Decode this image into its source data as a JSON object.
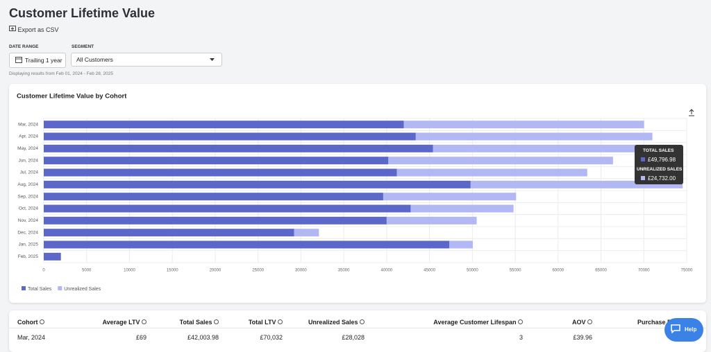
{
  "header": {
    "title": "Customer Lifetime Value",
    "export": "Export as CSV"
  },
  "filters": {
    "date_range_label": "DATE RANGE",
    "date_range_value": "Trailing 1 year",
    "segment_label": "SEGMENT",
    "segment_value": "All Customers",
    "note": "Displaying results from Feb 01, 2024 - Feb 28, 2025"
  },
  "chart_data": {
    "type": "hbar_stacked",
    "title": "Customer Lifetime Value by Cohort",
    "categories": [
      "Mar, 2024",
      "Apr, 2024",
      "May, 2024",
      "Jun, 2024",
      "Jul, 2024",
      "Aug, 2024",
      "Sep, 2024",
      "Oct, 2024",
      "Nov, 2024",
      "Dec, 2024",
      "Jan, 2025",
      "Feb, 2025"
    ],
    "series": [
      {
        "name": "Total Sales",
        "color": "#5c68c9",
        "values": [
          42003.98,
          43400,
          45400,
          40200,
          41200,
          49796.98,
          39600,
          42800,
          40000,
          29200,
          47300,
          2000
        ]
      },
      {
        "name": "Unrealized Sales",
        "color": "#b2b8f3",
        "values": [
          28028,
          27600,
          28800,
          26200,
          22200,
          24732,
          15500,
          12000,
          10500,
          2900,
          2750,
          0
        ]
      }
    ],
    "xlim": [
      0,
      75000
    ],
    "xticks": [
      0,
      5000,
      10000,
      15000,
      20000,
      25000,
      30000,
      35000,
      40000,
      45000,
      50000,
      55000,
      60000,
      65000,
      70000,
      75000
    ],
    "grid": true,
    "legend": "bottom-left"
  },
  "tooltip": {
    "items": [
      {
        "label": "TOTAL SALES",
        "value": "£49,796.98"
      },
      {
        "label": "UNREALIZED SALES",
        "value": "£24,732.00"
      }
    ]
  },
  "table": {
    "columns": [
      "Cohort",
      "Average LTV",
      "Total Sales",
      "Total LTV",
      "Unrealized Sales",
      "Average Customer Lifespan",
      "AOV",
      "Purchase F"
    ],
    "rows": [
      [
        "Mar, 2024",
        "£69",
        "£42,003.98",
        "£70,032",
        "£28,028",
        "3",
        "£39.96",
        ""
      ]
    ]
  },
  "help": "Help"
}
